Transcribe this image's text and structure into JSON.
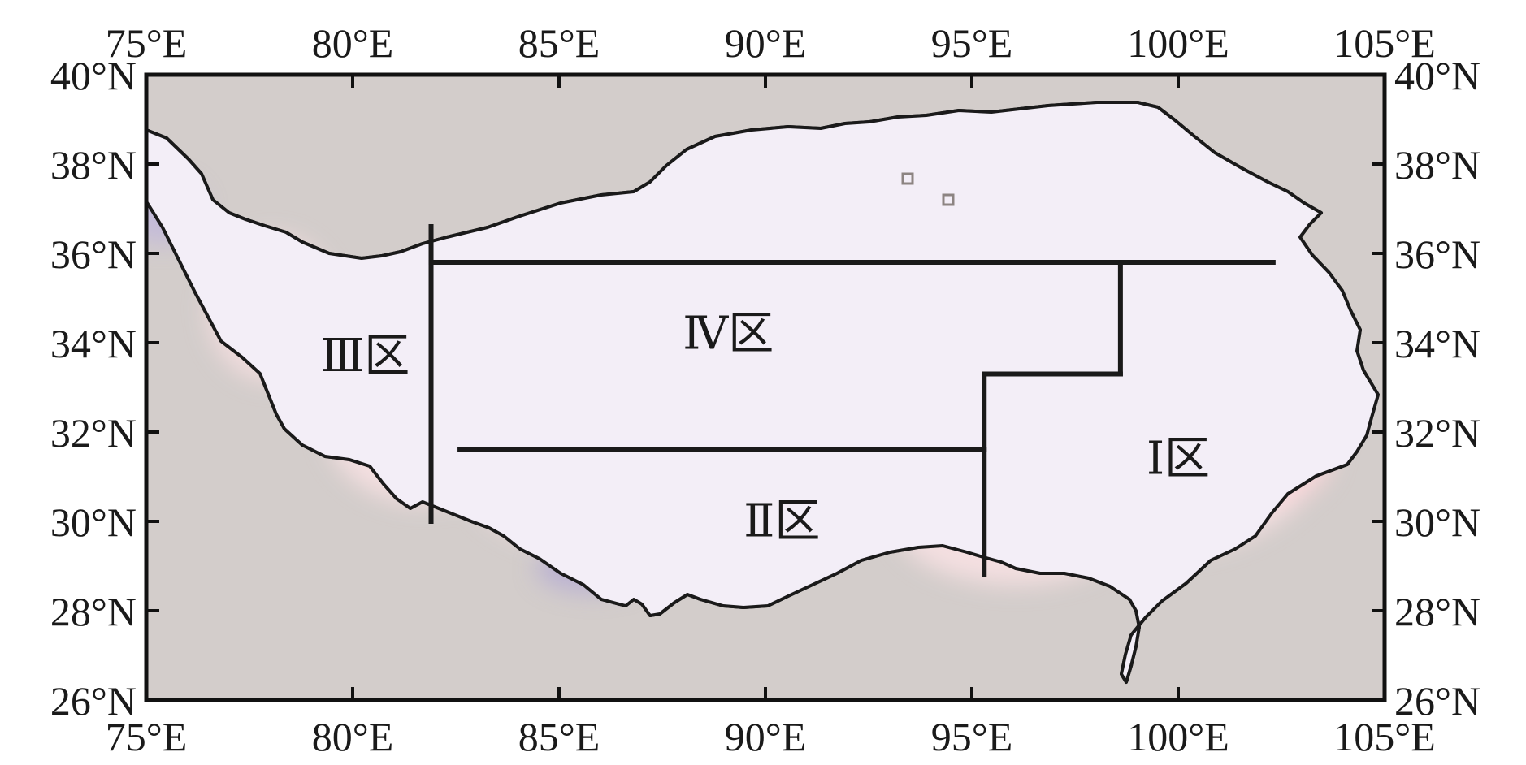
{
  "map": {
    "lon_range": [
      75,
      105
    ],
    "lat_range": [
      26,
      40
    ],
    "x_ticks": [
      75,
      80,
      85,
      90,
      95,
      100,
      105
    ],
    "y_ticks": [
      26,
      28,
      30,
      32,
      34,
      36,
      38,
      40
    ],
    "x_tick_labels": [
      "75°E",
      "80°E",
      "85°E",
      "90°E",
      "95°E",
      "100°E",
      "105°E"
    ],
    "y_tick_labels": [
      "26°N",
      "28°N",
      "30°N",
      "32°N",
      "34°N",
      "36°N",
      "38°N",
      "40°N"
    ],
    "colors": {
      "background": "#d3cdcb",
      "land": "#f3eef7",
      "positive": "#fde3e6",
      "negative_light": "#c0b7dc",
      "negative_strong": "#3f3a8b",
      "border": "#1a1a1a"
    }
  },
  "regions": [
    {
      "id": "I",
      "label": "Ⅰ区",
      "lon": 100.0,
      "lat": 31.3
    },
    {
      "id": "II",
      "label": "Ⅱ区",
      "lon": 90.4,
      "lat": 29.9
    },
    {
      "id": "III",
      "label": "Ⅲ区",
      "lon": 80.3,
      "lat": 33.6
    },
    {
      "id": "IV",
      "label": "Ⅳ区",
      "lon": 89.1,
      "lat": 34.1
    }
  ],
  "boundaries": [
    [
      [
        81.9,
        36.6
      ],
      [
        81.9,
        30.0
      ]
    ],
    [
      [
        81.9,
        35.8
      ],
      [
        102.3,
        35.8
      ]
    ],
    [
      [
        98.6,
        35.8
      ],
      [
        98.6,
        33.3
      ]
    ],
    [
      [
        98.6,
        33.3
      ],
      [
        95.3,
        33.3
      ]
    ],
    [
      [
        95.3,
        33.3
      ],
      [
        95.3,
        28.8
      ]
    ],
    [
      [
        82.6,
        31.6
      ],
      [
        95.3,
        31.6
      ]
    ]
  ]
}
